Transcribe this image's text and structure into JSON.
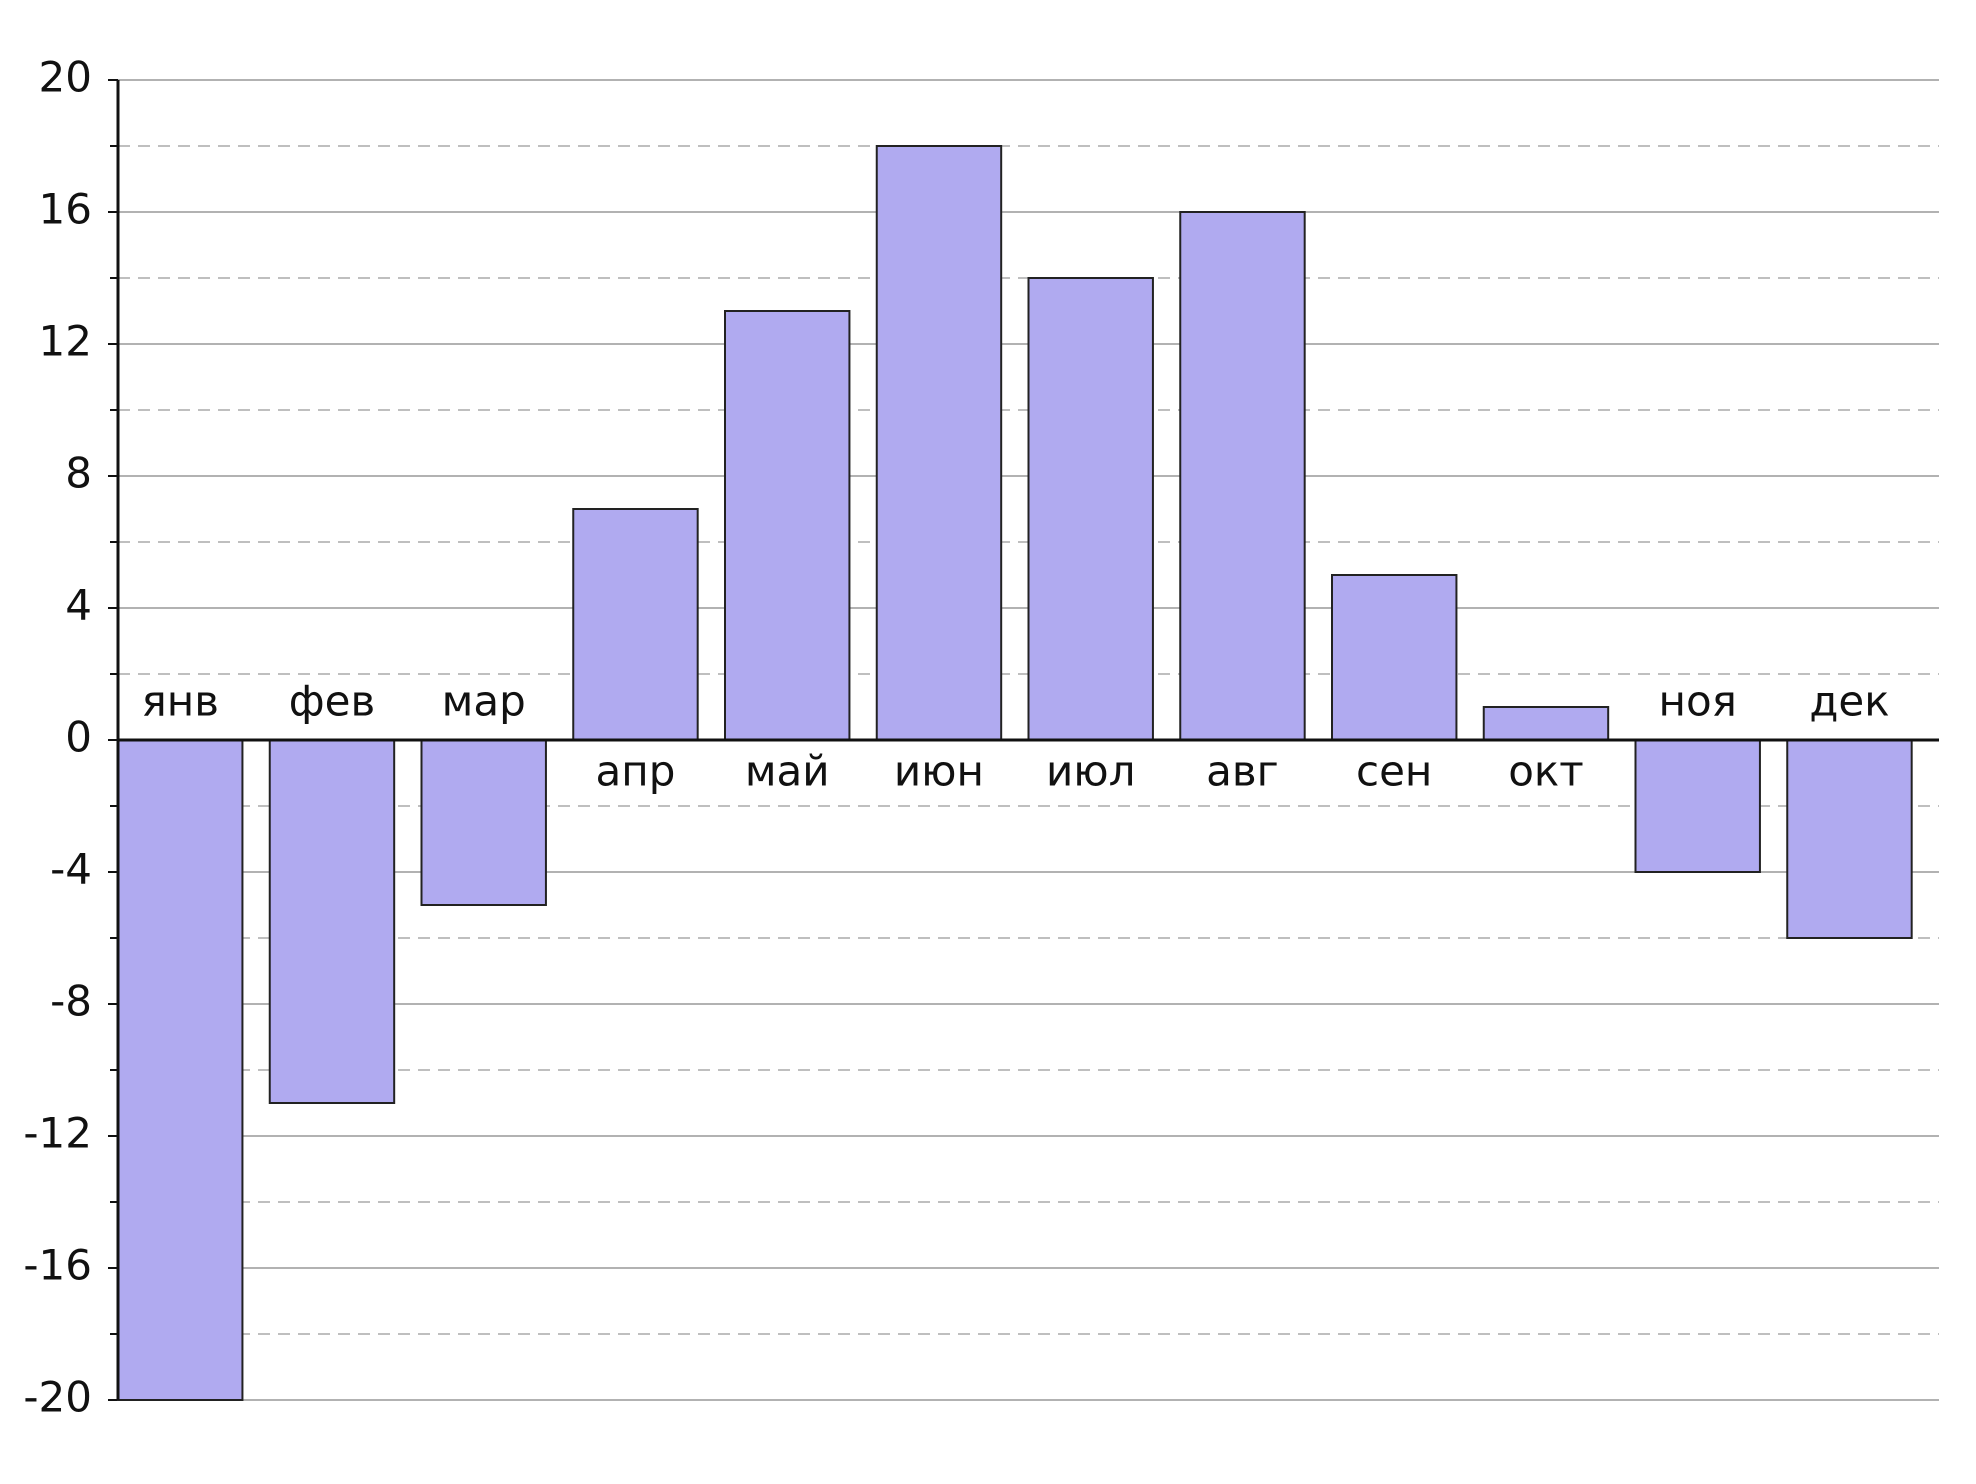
{
  "chart_data": {
    "type": "bar",
    "categories": [
      "янв",
      "фев",
      "мар",
      "апр",
      "май",
      "июн",
      "июл",
      "авг",
      "сен",
      "окт",
      "ноя",
      "дек"
    ],
    "values": [
      -20,
      -11,
      -5,
      7,
      13,
      18,
      14,
      16,
      5,
      1,
      -4,
      -6
    ],
    "color": "#b0aaf0",
    "ylim": [
      -20,
      20
    ],
    "yticks": [
      -20,
      -16,
      -12,
      -8,
      -4,
      0,
      4,
      8,
      12,
      16,
      20
    ],
    "minor_yticks": [
      -18,
      -14,
      -10,
      -6,
      -2,
      2,
      6,
      10,
      14,
      18
    ],
    "grid": true
  }
}
